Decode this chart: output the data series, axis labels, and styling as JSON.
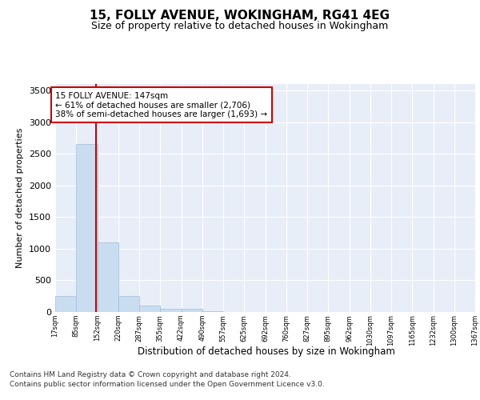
{
  "title1": "15, FOLLY AVENUE, WOKINGHAM, RG41 4EG",
  "title2": "Size of property relative to detached houses in Wokingham",
  "xlabel": "Distribution of detached houses by size in Wokingham",
  "ylabel": "Number of detached properties",
  "footer1": "Contains HM Land Registry data © Crown copyright and database right 2024.",
  "footer2": "Contains public sector information licensed under the Open Government Licence v3.0.",
  "bin_labels": [
    "17sqm",
    "85sqm",
    "152sqm",
    "220sqm",
    "287sqm",
    "355sqm",
    "422sqm",
    "490sqm",
    "557sqm",
    "625sqm",
    "692sqm",
    "760sqm",
    "827sqm",
    "895sqm",
    "962sqm",
    "1030sqm",
    "1097sqm",
    "1165sqm",
    "1232sqm",
    "1300sqm",
    "1367sqm"
  ],
  "bar_values": [
    250,
    2650,
    1100,
    250,
    100,
    50,
    50,
    15,
    0,
    0,
    0,
    0,
    0,
    0,
    0,
    0,
    0,
    0,
    0,
    0
  ],
  "bar_color": "#c9ddf0",
  "bar_edgecolor": "#a0bcd8",
  "ylim": [
    0,
    3600
  ],
  "yticks": [
    0,
    500,
    1000,
    1500,
    2000,
    2500,
    3000,
    3500
  ],
  "marker_color": "#cc0000",
  "annotation_text": "15 FOLLY AVENUE: 147sqm\n← 61% of detached houses are smaller (2,706)\n38% of semi-detached houses are larger (1,693) →",
  "annotation_box_color": "#ffffff",
  "annotation_box_edgecolor": "#cc0000",
  "property_size": 147,
  "bin_edges": [
    17,
    85,
    152,
    220,
    287,
    355,
    422,
    490,
    557,
    625,
    692,
    760,
    827,
    895,
    962,
    1030,
    1097,
    1165,
    1232,
    1300,
    1367
  ],
  "facecolor": "#e8eef8",
  "grid_color": "#ffffff"
}
